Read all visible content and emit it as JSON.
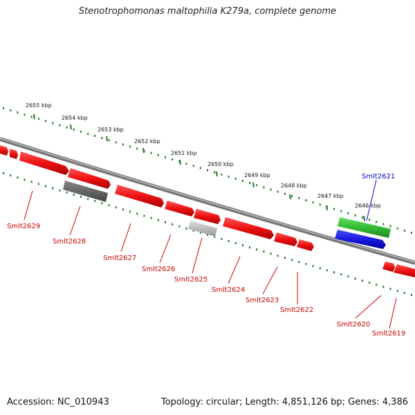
{
  "title": "Stenotrophomonas maltophilia K279a, complete genome",
  "footer": {
    "accession": "Accession: NC_010943",
    "summary": "Topology: circular; Length: 4,851,126 bp; Genes: 4,386"
  },
  "colors": {
    "forward_gene": "#ee1111",
    "other_gene": "#666666",
    "light_gene": "#bbbbbb",
    "highlight_green": "#33bb33",
    "highlight_blue": "#1a1ae0",
    "tick_green": "#227722",
    "label_red": "#cc0000",
    "label_blue": "#0000cc",
    "backbone": "#8a8a8a"
  },
  "ticks": [
    {
      "label": "2655 kbp"
    },
    {
      "label": "2654 kbp"
    },
    {
      "label": "2653 kbp"
    },
    {
      "label": "2652 kbp"
    },
    {
      "label": "2651 kbp"
    },
    {
      "label": "2650 kbp"
    },
    {
      "label": "2649 kbp"
    },
    {
      "label": "2648 kbp"
    },
    {
      "label": "2647 kbp"
    },
    {
      "label": "2646 kbp"
    }
  ],
  "gene_labels": [
    {
      "name": "Smlt2629",
      "color": "red"
    },
    {
      "name": "Smlt2628",
      "color": "red"
    },
    {
      "name": "Smlt2627",
      "color": "red"
    },
    {
      "name": "Smlt2626",
      "color": "red"
    },
    {
      "name": "Smlt2625",
      "color": "red"
    },
    {
      "name": "Smlt2624",
      "color": "red"
    },
    {
      "name": "Smlt2623",
      "color": "red"
    },
    {
      "name": "Smlt2622",
      "color": "red"
    },
    {
      "name": "Smlt2621",
      "color": "blue"
    },
    {
      "name": "Smlt2620",
      "color": "red"
    },
    {
      "name": "Smlt2619",
      "color": "red"
    }
  ]
}
